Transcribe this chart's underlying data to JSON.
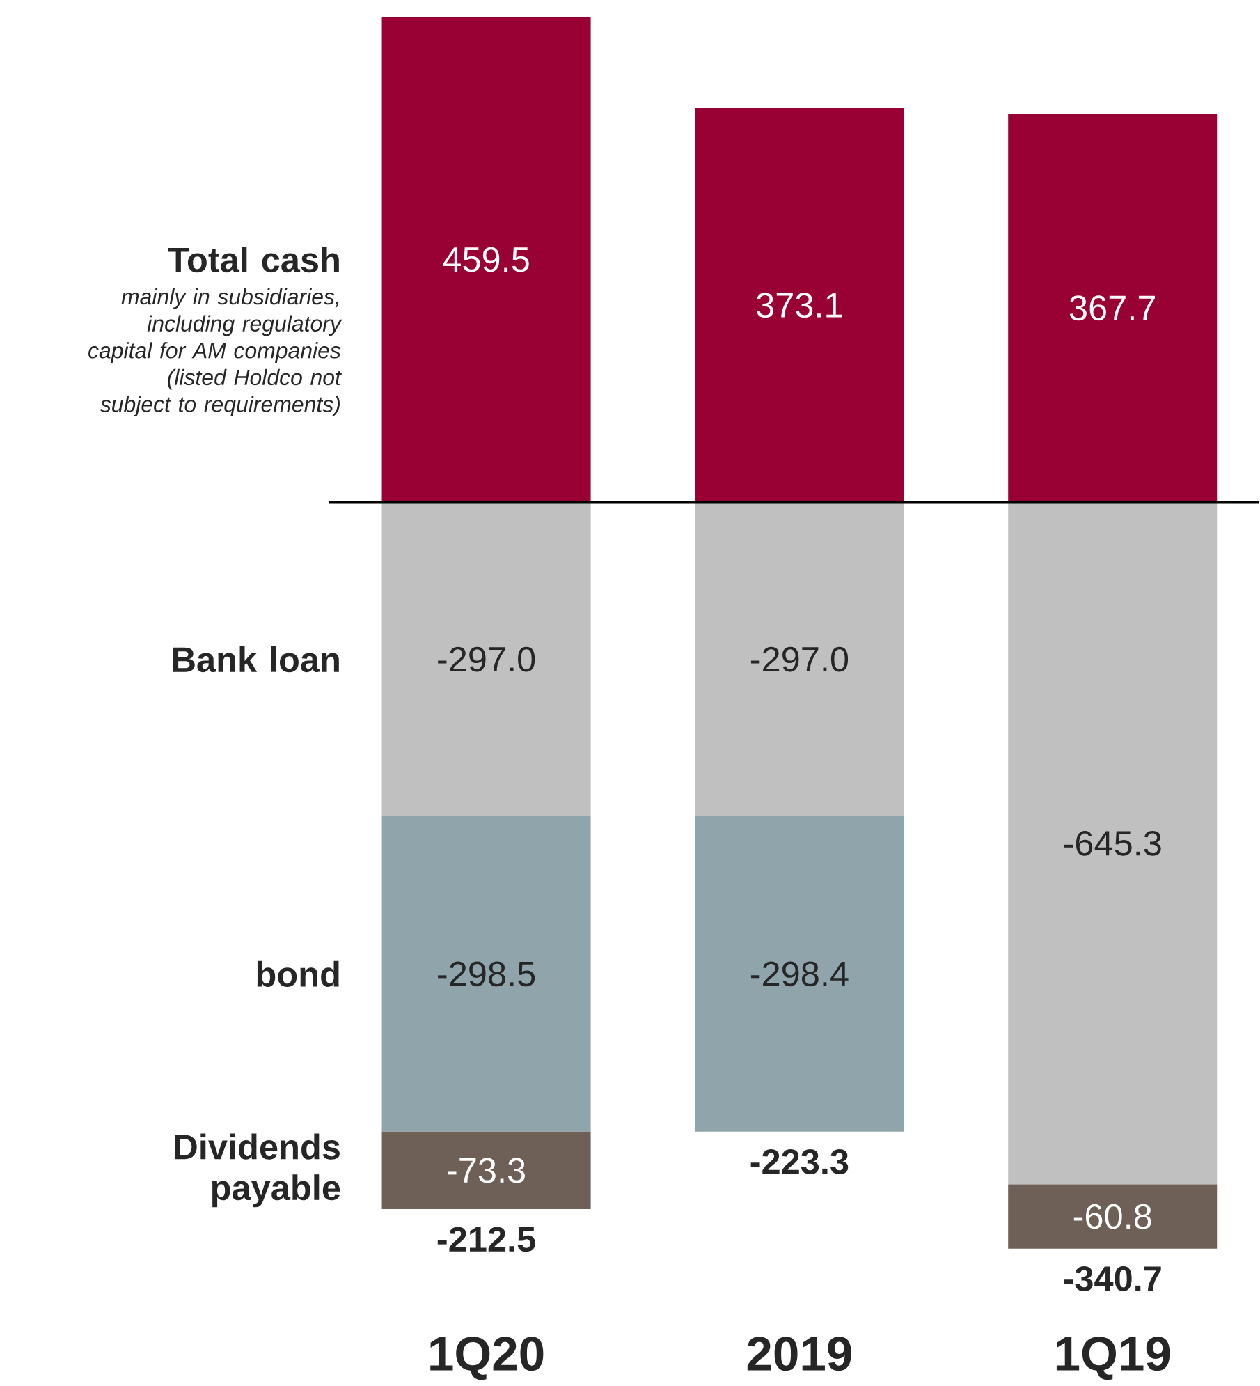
{
  "chart_data": {
    "type": "bar",
    "stacked": true,
    "categories": [
      "1Q20",
      "2019",
      "1Q19"
    ],
    "series": [
      {
        "name": "Total cash",
        "color": "#990033",
        "values": [
          459.5,
          373.1,
          367.7
        ],
        "value_labels": [
          "459.5",
          "373.1",
          "367.7"
        ]
      },
      {
        "name": "Bank loan",
        "color": "#c0c0c0",
        "values": [
          -297.0,
          -297.0,
          -645.3
        ],
        "value_labels": [
          "-297.0",
          "-297.0",
          "-645.3"
        ]
      },
      {
        "name": "bond",
        "color": "#8fa5ab",
        "values": [
          -298.5,
          -298.4,
          null
        ],
        "value_labels": [
          "-298.5",
          "-298.4",
          null
        ]
      },
      {
        "name": "Dividends payable",
        "color": "#6e5f57",
        "values": [
          -73.3,
          null,
          -60.8
        ],
        "value_labels": [
          "-73.3",
          null,
          "-60.8"
        ]
      }
    ],
    "annotations": [
      "mainly in subsidiaries, including regulatory capital for AM companies (listed Holdco not subject to requirements)",
      "-212.5",
      "-223.3",
      "-340.7"
    ]
  }
}
